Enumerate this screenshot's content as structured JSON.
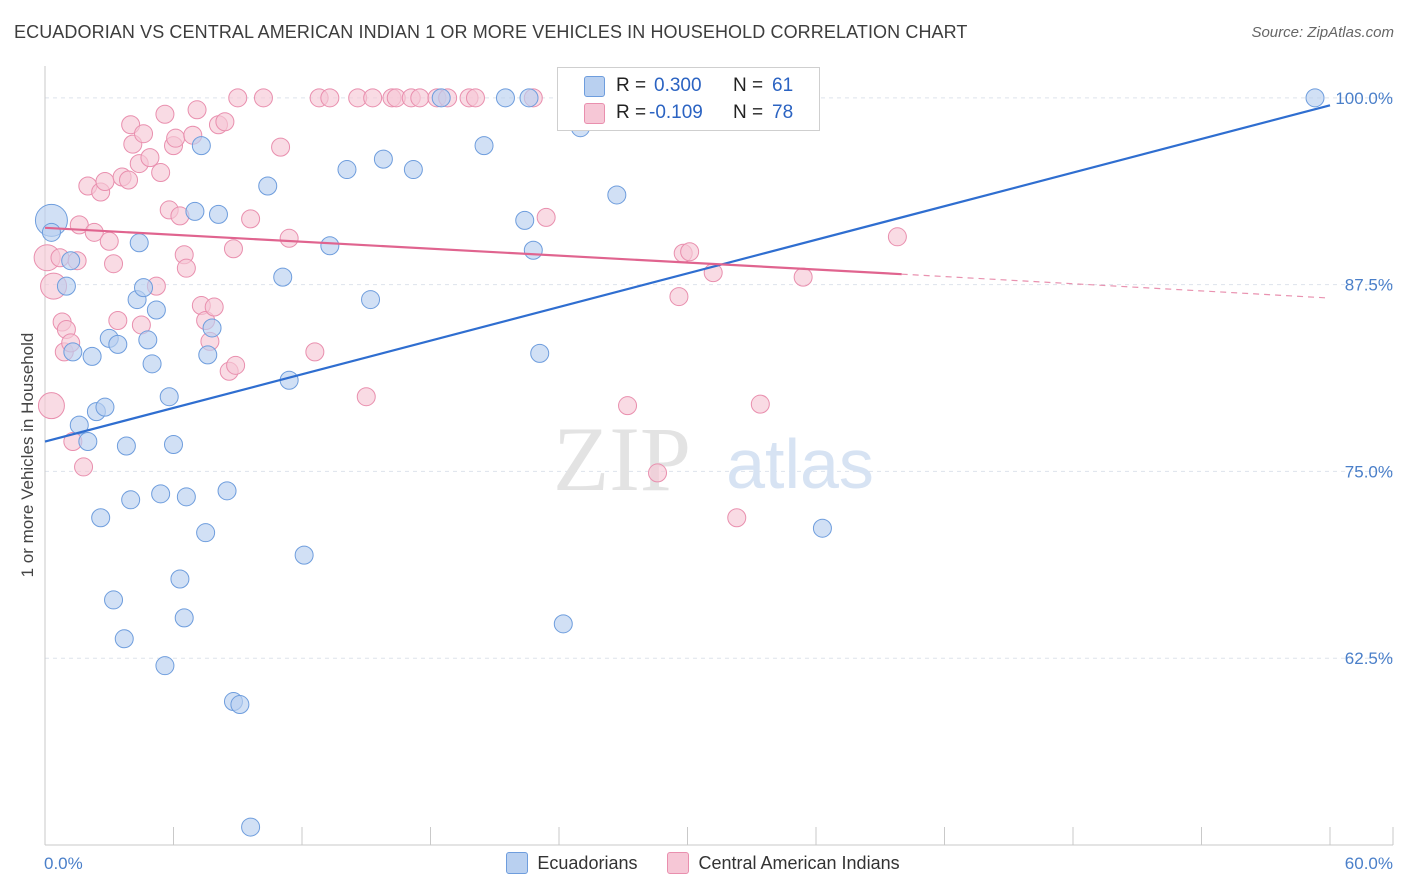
{
  "title": "ECUADORIAN VS CENTRAL AMERICAN INDIAN 1 OR MORE VEHICLES IN HOUSEHOLD CORRELATION CHART",
  "source": "Source: ZipAtlas.com",
  "watermark": {
    "zip": "ZIP",
    "atlas": "atlas"
  },
  "legend_box": {
    "rows": [
      {
        "r_label": "R =",
        "r_value": "0.300",
        "n_label": "N =",
        "n_value": "61"
      },
      {
        "r_label": "R =",
        "r_value": "-0.109",
        "n_label": "N =",
        "n_value": "78"
      }
    ]
  },
  "legend": {
    "series1": "Ecuadorians",
    "series2": "Central American Indians"
  },
  "colors": {
    "blue_fill": "#b9d0f0",
    "blue_stroke": "#6e9ddd",
    "blue_line": "#2f6ed0",
    "pink_fill": "#f6c7d6",
    "pink_stroke": "#e98fae",
    "pink_line": "#e0648f",
    "grid": "#dde3ec",
    "tick_text": "#4a7fc9"
  },
  "chart_data": {
    "type": "scatter",
    "title": "ECUADORIAN VS CENTRAL AMERICAN INDIAN 1 OR MORE VEHICLES IN HOUSEHOLD CORRELATION CHART",
    "xlabel": "",
    "ylabel": "1 or more Vehicles in Household",
    "xlim": [
      0,
      60
    ],
    "ylim": [
      50,
      103
    ],
    "x_tick_labels": [
      "0.0%",
      "60.0%"
    ],
    "y_ticks": [
      62.5,
      75.0,
      87.5,
      100.0
    ],
    "y_tick_labels": [
      "62.5%",
      "75.0%",
      "87.5%",
      "100.0%"
    ],
    "series": [
      {
        "name": "Ecuadorians",
        "r": 0.3,
        "n": 61,
        "trend": {
          "x": [
            0,
            60
          ],
          "y": [
            77.0,
            99.5
          ]
        },
        "points": [
          [
            0.3,
            91.8
          ],
          [
            0.3,
            91.0
          ],
          [
            1.0,
            87.4
          ],
          [
            1.2,
            89.1
          ],
          [
            1.3,
            83.0
          ],
          [
            1.6,
            78.1
          ],
          [
            2.0,
            77.0
          ],
          [
            2.2,
            82.7
          ],
          [
            2.4,
            79.0
          ],
          [
            2.6,
            71.9
          ],
          [
            2.8,
            79.3
          ],
          [
            3.0,
            83.9
          ],
          [
            3.2,
            66.4
          ],
          [
            3.4,
            83.5
          ],
          [
            3.7,
            63.8
          ],
          [
            3.8,
            76.7
          ],
          [
            4.0,
            73.1
          ],
          [
            4.3,
            86.5
          ],
          [
            4.4,
            90.3
          ],
          [
            4.6,
            87.3
          ],
          [
            4.8,
            83.8
          ],
          [
            5.0,
            82.2
          ],
          [
            5.2,
            85.8
          ],
          [
            5.4,
            73.5
          ],
          [
            5.6,
            62.0
          ],
          [
            5.8,
            80.0
          ],
          [
            6.0,
            76.8
          ],
          [
            6.3,
            67.8
          ],
          [
            6.5,
            65.2
          ],
          [
            6.6,
            73.3
          ],
          [
            7.0,
            92.4
          ],
          [
            7.3,
            96.8
          ],
          [
            7.5,
            70.9
          ],
          [
            7.6,
            82.8
          ],
          [
            7.8,
            84.6
          ],
          [
            8.1,
            92.2
          ],
          [
            8.5,
            73.7
          ],
          [
            8.8,
            59.6
          ],
          [
            9.1,
            59.4
          ],
          [
            9.6,
            51.2
          ],
          [
            10.4,
            94.1
          ],
          [
            11.1,
            88.0
          ],
          [
            11.4,
            81.1
          ],
          [
            12.1,
            69.4
          ],
          [
            13.3,
            90.1
          ],
          [
            14.1,
            95.2
          ],
          [
            15.2,
            86.5
          ],
          [
            15.8,
            95.9
          ],
          [
            17.2,
            95.2
          ],
          [
            18.5,
            100.0
          ],
          [
            20.5,
            96.8
          ],
          [
            21.5,
            100.0
          ],
          [
            22.4,
            91.8
          ],
          [
            22.6,
            100.0
          ],
          [
            22.8,
            89.8
          ],
          [
            23.1,
            82.9
          ],
          [
            24.2,
            64.8
          ],
          [
            25.0,
            98.0
          ],
          [
            26.7,
            93.5
          ],
          [
            36.3,
            71.2
          ],
          [
            59.3,
            100.0
          ]
        ]
      },
      {
        "name": "Central American Indians",
        "r": -0.109,
        "n": 78,
        "trend": {
          "x": [
            0,
            40
          ],
          "y": [
            91.3,
            88.2
          ],
          "dashed_to": {
            "x": 60,
            "y": 86.6
          }
        },
        "points": [
          [
            0.1,
            89.3
          ],
          [
            0.3,
            79.4
          ],
          [
            0.4,
            87.4
          ],
          [
            0.7,
            89.3
          ],
          [
            0.8,
            85.0
          ],
          [
            0.9,
            83.0
          ],
          [
            1.0,
            84.5
          ],
          [
            1.2,
            83.6
          ],
          [
            1.3,
            77.0
          ],
          [
            1.5,
            89.1
          ],
          [
            1.6,
            91.5
          ],
          [
            1.8,
            75.3
          ],
          [
            2.0,
            94.1
          ],
          [
            2.3,
            91.0
          ],
          [
            2.6,
            93.7
          ],
          [
            2.8,
            94.4
          ],
          [
            3.0,
            90.4
          ],
          [
            3.2,
            88.9
          ],
          [
            3.4,
            85.1
          ],
          [
            3.6,
            94.7
          ],
          [
            3.9,
            94.5
          ],
          [
            4.0,
            98.2
          ],
          [
            4.1,
            96.9
          ],
          [
            4.4,
            95.6
          ],
          [
            4.5,
            84.8
          ],
          [
            4.6,
            97.6
          ],
          [
            4.9,
            96.0
          ],
          [
            5.2,
            87.4
          ],
          [
            5.4,
            95.0
          ],
          [
            5.6,
            98.9
          ],
          [
            5.8,
            92.5
          ],
          [
            6.0,
            96.8
          ],
          [
            6.1,
            97.3
          ],
          [
            6.3,
            92.1
          ],
          [
            6.5,
            89.5
          ],
          [
            6.6,
            88.6
          ],
          [
            6.9,
            97.5
          ],
          [
            7.1,
            99.2
          ],
          [
            7.3,
            86.1
          ],
          [
            7.5,
            85.1
          ],
          [
            7.7,
            83.7
          ],
          [
            7.9,
            86.0
          ],
          [
            8.1,
            98.2
          ],
          [
            8.4,
            98.4
          ],
          [
            8.6,
            81.7
          ],
          [
            8.8,
            89.9
          ],
          [
            8.9,
            82.1
          ],
          [
            9.0,
            100.0
          ],
          [
            9.6,
            91.9
          ],
          [
            10.2,
            100.0
          ],
          [
            11.0,
            96.7
          ],
          [
            11.4,
            90.6
          ],
          [
            12.6,
            83.0
          ],
          [
            12.8,
            100.0
          ],
          [
            13.3,
            100.0
          ],
          [
            14.6,
            100.0
          ],
          [
            15.0,
            80.0
          ],
          [
            15.3,
            100.0
          ],
          [
            16.2,
            100.0
          ],
          [
            16.4,
            100.0
          ],
          [
            17.1,
            100.0
          ],
          [
            17.5,
            100.0
          ],
          [
            18.3,
            100.0
          ],
          [
            18.8,
            100.0
          ],
          [
            19.8,
            100.0
          ],
          [
            20.1,
            100.0
          ],
          [
            22.8,
            100.0
          ],
          [
            23.4,
            92.0
          ],
          [
            27.2,
            79.4
          ],
          [
            28.6,
            74.9
          ],
          [
            29.6,
            86.7
          ],
          [
            29.8,
            89.6
          ],
          [
            30.1,
            89.7
          ],
          [
            31.2,
            88.3
          ],
          [
            32.3,
            71.9
          ],
          [
            33.4,
            79.5
          ],
          [
            35.4,
            88.0
          ],
          [
            39.8,
            90.7
          ]
        ]
      }
    ]
  }
}
